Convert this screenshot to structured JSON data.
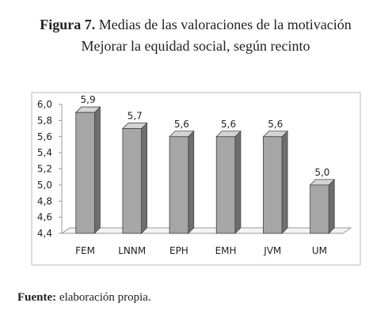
{
  "chart_data": {
    "type": "bar3d",
    "title_prefix": "Figura 7.",
    "title": "Medias de las valoraciones de la motivación",
    "subtitle": "Mejorar la equidad social, según recinto",
    "categories": [
      "FEM",
      "LNNM",
      "EPH",
      "EMH",
      "JVM",
      "UM"
    ],
    "values": [
      5.9,
      5.7,
      5.6,
      5.6,
      5.6,
      5.0
    ],
    "value_labels": [
      "5,9",
      "5,7",
      "5,6",
      "5,6",
      "5,6",
      "5,0"
    ],
    "color": "#a6a6a6",
    "ylim": [
      4.4,
      6.0
    ],
    "yticks": [
      {
        "value": 4.4,
        "label": "4,4"
      },
      {
        "value": 4.6,
        "label": "4,6"
      },
      {
        "value": 4.8,
        "label": "4,8"
      },
      {
        "value": 5.0,
        "label": "5,0"
      },
      {
        "value": 5.2,
        "label": "5,2"
      },
      {
        "value": 5.4,
        "label": "5,4"
      },
      {
        "value": 5.6,
        "label": "5,6"
      },
      {
        "value": 5.8,
        "label": "5,8"
      },
      {
        "value": 6.0,
        "label": "6,0"
      }
    ],
    "grid": false,
    "source_label": "Fuente:",
    "source": "elaboración propia."
  }
}
